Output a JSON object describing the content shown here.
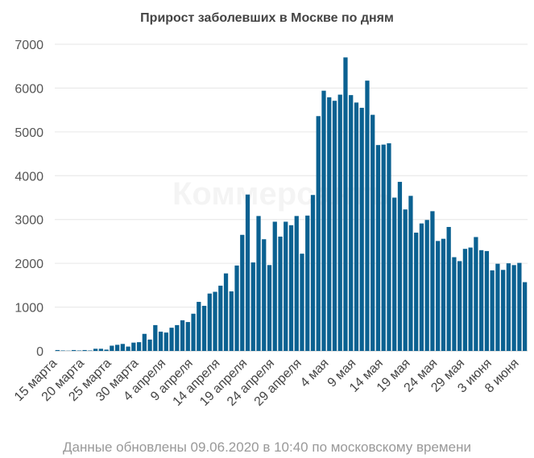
{
  "title": "Прирост заболевших в Москве по дням",
  "footer": "Данные обновлены 09.06.2020 в 10:40 по московскому времени",
  "watermark": "Коммерсантъ",
  "colors": {
    "bar": "#0b6191",
    "grid": "#e6e6e6",
    "axis": "#cccccc"
  },
  "chart_data": {
    "type": "bar",
    "title": "Прирост заболевших в Москве по дням",
    "xlabel": "",
    "ylabel": "",
    "ylim": [
      0,
      7000
    ],
    "yticks": [
      0,
      1000,
      2000,
      3000,
      4000,
      5000,
      6000,
      7000
    ],
    "grid": true,
    "legend": "none",
    "tick_labels": [
      "15 марта",
      "20 марта",
      "25 марта",
      "30 марта",
      "4 апреля",
      "9 апреля",
      "14 апреля",
      "19 апреля",
      "24 апреля",
      "29 апреля",
      "4 мая",
      "9 мая",
      "14 мая",
      "19 мая",
      "24 мая",
      "29 мая",
      "3 июня",
      "8 июня"
    ],
    "tick_every": 5,
    "values": [
      20,
      10,
      5,
      20,
      10,
      20,
      10,
      50,
      50,
      30,
      120,
      140,
      160,
      100,
      190,
      200,
      390,
      260,
      590,
      440,
      420,
      530,
      590,
      700,
      660,
      850,
      1120,
      1030,
      1310,
      1350,
      1490,
      1770,
      1360,
      1950,
      2650,
      3570,
      2020,
      3080,
      2550,
      1960,
      2950,
      2610,
      2950,
      2870,
      3080,
      2220,
      3090,
      3560,
      5360,
      5940,
      5790,
      5710,
      5850,
      6700,
      5840,
      5670,
      5550,
      6170,
      5390,
      4700,
      4710,
      4740,
      3500,
      3860,
      3230,
      3540,
      2700,
      2910,
      2990,
      3190,
      2510,
      2560,
      2830,
      2140,
      2050,
      2330,
      2360,
      2600,
      2300,
      2280,
      1840,
      1990,
      1850,
      2000,
      1960,
      2010,
      1570
    ]
  }
}
